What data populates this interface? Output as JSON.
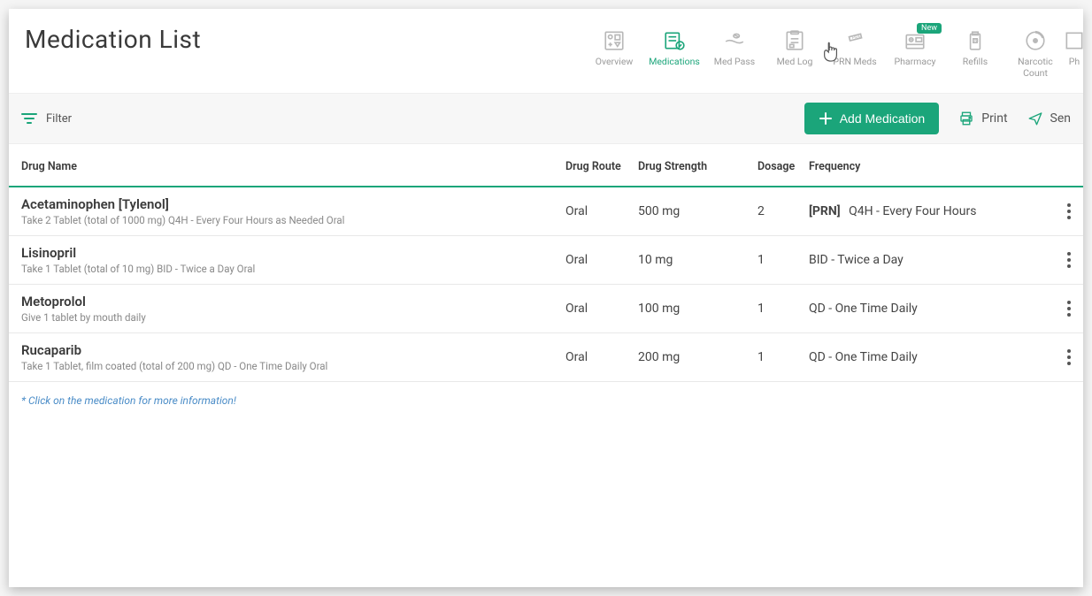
{
  "page_title": "Medication List",
  "colors": {
    "accent": "#1ba57a",
    "text": "#3a3a3a",
    "muted": "#888888",
    "link": "#4a8cc7",
    "border": "#e8e8e8"
  },
  "nav_tabs": [
    {
      "label": "Overview",
      "active": false
    },
    {
      "label": "Medications",
      "active": true
    },
    {
      "label": "Med Pass",
      "active": false
    },
    {
      "label": "Med Log",
      "active": false
    },
    {
      "label": "PRN Meds",
      "active": false,
      "cursor": true
    },
    {
      "label": "Pharmacy",
      "active": false,
      "badge": "New"
    },
    {
      "label": "Refills",
      "active": false
    },
    {
      "label": "Narcotic Count",
      "active": false
    },
    {
      "label": "Ph",
      "active": false
    }
  ],
  "toolbar": {
    "filter_label": "Filter",
    "add_label": "Add Medication",
    "print_label": "Print",
    "send_label": "Sen"
  },
  "columns": {
    "name": "Drug Name",
    "route": "Drug Route",
    "strength": "Drug Strength",
    "dosage": "Dosage",
    "frequency": "Frequency"
  },
  "medications": [
    {
      "name": "Acetaminophen [Tylenol]",
      "instructions": "Take 2 Tablet (total of 1000 mg) Q4H - Every Four Hours as Needed Oral",
      "route": "Oral",
      "strength": "500 mg",
      "dosage": "2",
      "prn": "[PRN]",
      "frequency": "Q4H - Every Four Hours"
    },
    {
      "name": "Lisinopril",
      "instructions": "Take 1 Tablet (total of 10 mg) BID - Twice a Day Oral",
      "route": "Oral",
      "strength": "10 mg",
      "dosage": "1",
      "prn": "",
      "frequency": "BID - Twice a Day"
    },
    {
      "name": "Metoprolol",
      "instructions": "Give 1 tablet by mouth daily",
      "route": "Oral",
      "strength": "100 mg",
      "dosage": "1",
      "prn": "",
      "frequency": "QD - One Time Daily"
    },
    {
      "name": "Rucaparib",
      "instructions": "Take 1 Tablet, film coated (total of 200 mg) QD - One Time Daily Oral",
      "route": "Oral",
      "strength": "200 mg",
      "dosage": "1",
      "prn": "",
      "frequency": "QD - One Time Daily"
    }
  ],
  "footnote": "* Click on the medication for more information!"
}
